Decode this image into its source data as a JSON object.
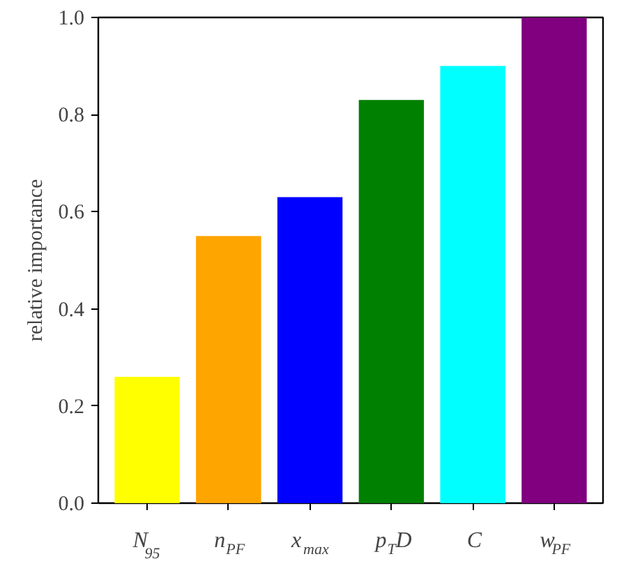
{
  "chart_data": {
    "type": "bar",
    "ylabel": "relative importance",
    "categories": [
      "N$_{95}$",
      "n$_{PF}$",
      "x$_{max}$",
      "p$_{T}$D",
      "C",
      "w$_{PF}$"
    ],
    "values": [
      0.26,
      0.55,
      0.63,
      0.83,
      0.9,
      1.0
    ],
    "colors": [
      "#ffff00",
      "#ffa500",
      "#0000ff",
      "#008000",
      "#00ffff",
      "#800080"
    ],
    "ylim": [
      0,
      1
    ],
    "yticks": [
      {
        "value": 0,
        "label": "0.0"
      },
      {
        "value": 0.2,
        "label": "0.2"
      },
      {
        "value": 0.4,
        "label": "0.4"
      },
      {
        "value": 0.6,
        "label": "0.6"
      },
      {
        "value": 0.8,
        "label": "0.8"
      },
      {
        "value": 1,
        "label": "1.0"
      }
    ],
    "grid": false
  }
}
